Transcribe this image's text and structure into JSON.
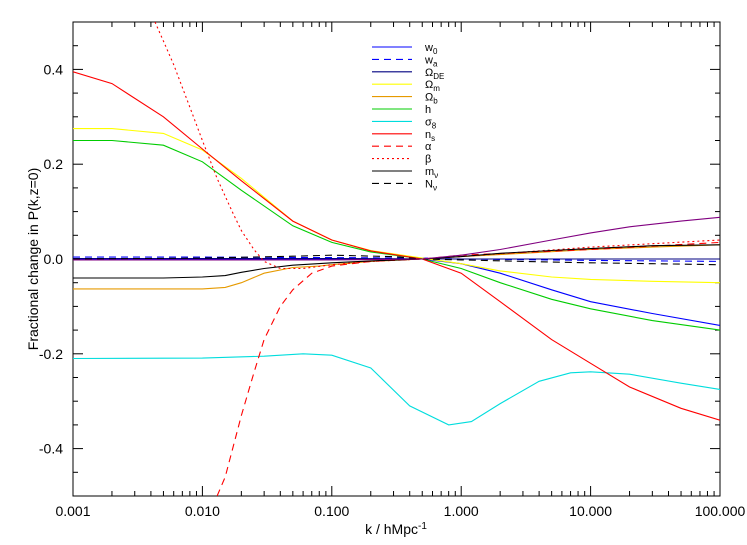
{
  "chart_data": {
    "type": "line",
    "xscale": "log",
    "xlim": [
      0.001,
      100.0
    ],
    "ylim": [
      -0.5,
      0.5
    ],
    "xlabel": "k / hMpc",
    "xlabel_sup": "-1",
    "ylabel": "Fractional change in P(k,z=0)",
    "x_tick_values": [
      0.001,
      0.01,
      0.1,
      1.0,
      10.0,
      100.0
    ],
    "x_tick_labels": [
      "0.001",
      "0.010",
      "0.100",
      "1.000",
      "10.000",
      "100.000"
    ],
    "y_tick_values": [
      -0.4,
      -0.2,
      0.0,
      0.2,
      0.4
    ],
    "y_tick_labels": [
      "-0.4",
      "-0.2",
      "0.0",
      "0.2",
      "0.4"
    ],
    "legend_position": "top-center",
    "series": [
      {
        "id": "w0",
        "name": "w",
        "sub": "0",
        "color": "#0000ff",
        "dash": "solid",
        "x": [
          0.001,
          0.01,
          0.1,
          0.3,
          0.5,
          1,
          2,
          5,
          10,
          30,
          100
        ],
        "y": [
          0.0,
          0.0,
          0.0,
          0.0,
          0.0,
          -0.01,
          -0.03,
          -0.065,
          -0.09,
          -0.115,
          -0.14
        ]
      },
      {
        "id": "wa",
        "name": "w",
        "sub": "a",
        "color": "#0000ff",
        "dash": "dashed",
        "x": [
          0.001,
          0.01,
          0.1,
          0.5,
          1,
          10,
          100
        ],
        "y": [
          0.004,
          0.004,
          0.003,
          0.002,
          0.0,
          -0.003,
          -0.005
        ]
      },
      {
        "id": "ode",
        "name": "Ω",
        "sub": "DE",
        "color": "#000080",
        "dash": "solid",
        "x": [
          0.001,
          0.01,
          0.1,
          1,
          10,
          100
        ],
        "y": [
          0.001,
          0.001,
          0.001,
          0.0,
          0.0,
          0.0
        ]
      },
      {
        "id": "om",
        "name": "Ω",
        "sub": "m",
        "color": "#ffff00",
        "dash": "solid",
        "x": [
          0.001,
          0.002,
          0.005,
          0.01,
          0.02,
          0.05,
          0.1,
          0.2,
          0.5,
          1,
          2,
          5,
          10,
          30,
          100
        ],
        "y": [
          0.275,
          0.275,
          0.265,
          0.23,
          0.17,
          0.08,
          0.04,
          0.018,
          0.002,
          -0.01,
          -0.025,
          -0.038,
          -0.043,
          -0.047,
          -0.05
        ]
      },
      {
        "id": "ob",
        "name": "Ω",
        "sub": "b",
        "color": "#e69a00",
        "dash": "solid",
        "x": [
          0.001,
          0.005,
          0.01,
          0.015,
          0.02,
          0.03,
          0.05,
          0.08,
          0.1,
          0.2,
          0.5,
          1,
          3,
          10,
          30,
          100
        ],
        "y": [
          -0.063,
          -0.063,
          -0.063,
          -0.06,
          -0.05,
          -0.03,
          -0.018,
          -0.015,
          -0.012,
          -0.005,
          0.0,
          0.005,
          0.012,
          0.02,
          0.025,
          0.03
        ]
      },
      {
        "id": "h",
        "name": "h",
        "sub": "",
        "color": "#00cc00",
        "dash": "solid",
        "x": [
          0.001,
          0.002,
          0.005,
          0.01,
          0.02,
          0.05,
          0.1,
          0.2,
          0.5,
          1,
          2,
          5,
          10,
          30,
          100
        ],
        "y": [
          0.25,
          0.25,
          0.24,
          0.205,
          0.145,
          0.07,
          0.035,
          0.015,
          0.0,
          -0.02,
          -0.05,
          -0.085,
          -0.105,
          -0.13,
          -0.15
        ]
      },
      {
        "id": "s8",
        "name": "σ",
        "sub": "8",
        "color": "#00dddd",
        "dash": "solid",
        "x": [
          0.001,
          0.01,
          0.03,
          0.06,
          0.1,
          0.2,
          0.4,
          0.8,
          1.2,
          2,
          4,
          7,
          10,
          20,
          50,
          100
        ],
        "y": [
          -0.21,
          -0.209,
          -0.205,
          -0.2,
          -0.203,
          -0.23,
          -0.31,
          -0.35,
          -0.343,
          -0.305,
          -0.258,
          -0.24,
          -0.238,
          -0.243,
          -0.262,
          -0.275
        ]
      },
      {
        "id": "ns",
        "name": "n",
        "sub": "s",
        "color": "#ff0000",
        "dash": "solid",
        "x": [
          0.001,
          0.002,
          0.005,
          0.01,
          0.02,
          0.05,
          0.1,
          0.2,
          0.5,
          1,
          2,
          5,
          10,
          20,
          50,
          100
        ],
        "y": [
          0.395,
          0.37,
          0.3,
          0.232,
          0.165,
          0.08,
          0.04,
          0.017,
          0.0,
          -0.03,
          -0.09,
          -0.17,
          -0.22,
          -0.27,
          -0.315,
          -0.34
        ]
      },
      {
        "id": "alpha",
        "name": "α",
        "sub": "",
        "color": "#ff0000",
        "dash": "dashed",
        "x": [
          0.013,
          0.015,
          0.02,
          0.025,
          0.03,
          0.04,
          0.05,
          0.07,
          0.1,
          0.2,
          0.5,
          1,
          10,
          100
        ],
        "y": [
          -0.5,
          -0.46,
          -0.33,
          -0.24,
          -0.17,
          -0.1,
          -0.065,
          -0.03,
          -0.015,
          -0.005,
          0.0,
          0.008,
          0.02,
          0.035
        ]
      },
      {
        "id": "beta",
        "name": "β",
        "sub": "",
        "color": "#ff0000",
        "dash": "dotted",
        "x": [
          0.0043,
          0.005,
          0.006,
          0.008,
          0.01,
          0.013,
          0.017,
          0.02,
          0.025,
          0.03,
          0.04,
          0.06,
          0.1,
          0.2,
          0.5,
          1,
          10,
          100
        ],
        "y": [
          0.5,
          0.46,
          0.41,
          0.32,
          0.25,
          0.17,
          0.1,
          0.06,
          0.02,
          -0.005,
          -0.02,
          -0.02,
          -0.012,
          -0.005,
          0.0,
          0.005,
          0.025,
          0.04
        ]
      },
      {
        "id": "mnu",
        "name": "m",
        "sub": "ν",
        "color": "#000000",
        "dash": "solid",
        "x": [
          0.001,
          0.005,
          0.01,
          0.015,
          0.02,
          0.03,
          0.05,
          0.1,
          0.2,
          0.5,
          1,
          2,
          5,
          10,
          30,
          100
        ],
        "y": [
          -0.04,
          -0.04,
          -0.038,
          -0.035,
          -0.028,
          -0.02,
          -0.013,
          -0.008,
          -0.004,
          0.0,
          0.005,
          0.012,
          0.018,
          0.022,
          0.028,
          0.03
        ]
      },
      {
        "id": "Nnu",
        "name": "N",
        "sub": "ν",
        "color": "#000000",
        "dash": "dashed",
        "x": [
          0.001,
          0.01,
          0.05,
          0.1,
          0.3,
          0.5,
          1,
          3,
          10,
          30,
          100
        ],
        "y": [
          0.0,
          0.002,
          0.006,
          0.008,
          0.005,
          0.0,
          -0.002,
          -0.005,
          -0.008,
          -0.01,
          -0.012
        ]
      },
      {
        "id": "purple",
        "name": "",
        "sub": "",
        "color": "#800080",
        "dash": "solid",
        "legend": false,
        "x": [
          0.001,
          0.01,
          0.1,
          0.5,
          1,
          2,
          5,
          10,
          20,
          50,
          100
        ],
        "y": [
          -0.002,
          -0.002,
          -0.002,
          0.0,
          0.008,
          0.02,
          0.04,
          0.055,
          0.068,
          0.08,
          0.088
        ]
      }
    ]
  }
}
